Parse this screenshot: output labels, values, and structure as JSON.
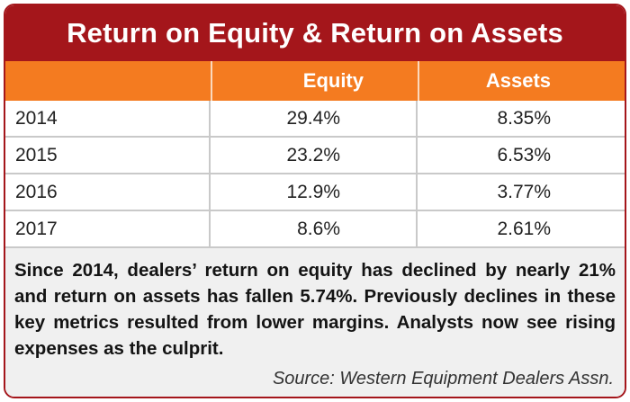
{
  "chart_data": {
    "type": "table",
    "title": "Return on Equity & Return on Assets",
    "columns": [
      "",
      "Equity",
      "Assets"
    ],
    "rows": [
      {
        "year": "2014",
        "equity": "29.4%",
        "assets": "8.35%"
      },
      {
        "year": "2015",
        "equity": "23.2%",
        "assets": "6.53%"
      },
      {
        "year": "2016",
        "equity": "12.9%",
        "assets": "3.77%"
      },
      {
        "year": "2017",
        "equity": "8.6%",
        "assets": "2.61%"
      }
    ],
    "note": "Since 2014, dealers’ return on equity has declined by nearly 21% and return on assets has fallen 5.74%. Previously declines in these key metrics resulted from lower margins. Analysts now see rising expenses as the culprit.",
    "source": "Source: Western Equipment Dealers Assn."
  },
  "colors": {
    "title_bg": "#a4161b",
    "header_bg": "#f47b20",
    "note_bg": "#f0f0f0"
  }
}
